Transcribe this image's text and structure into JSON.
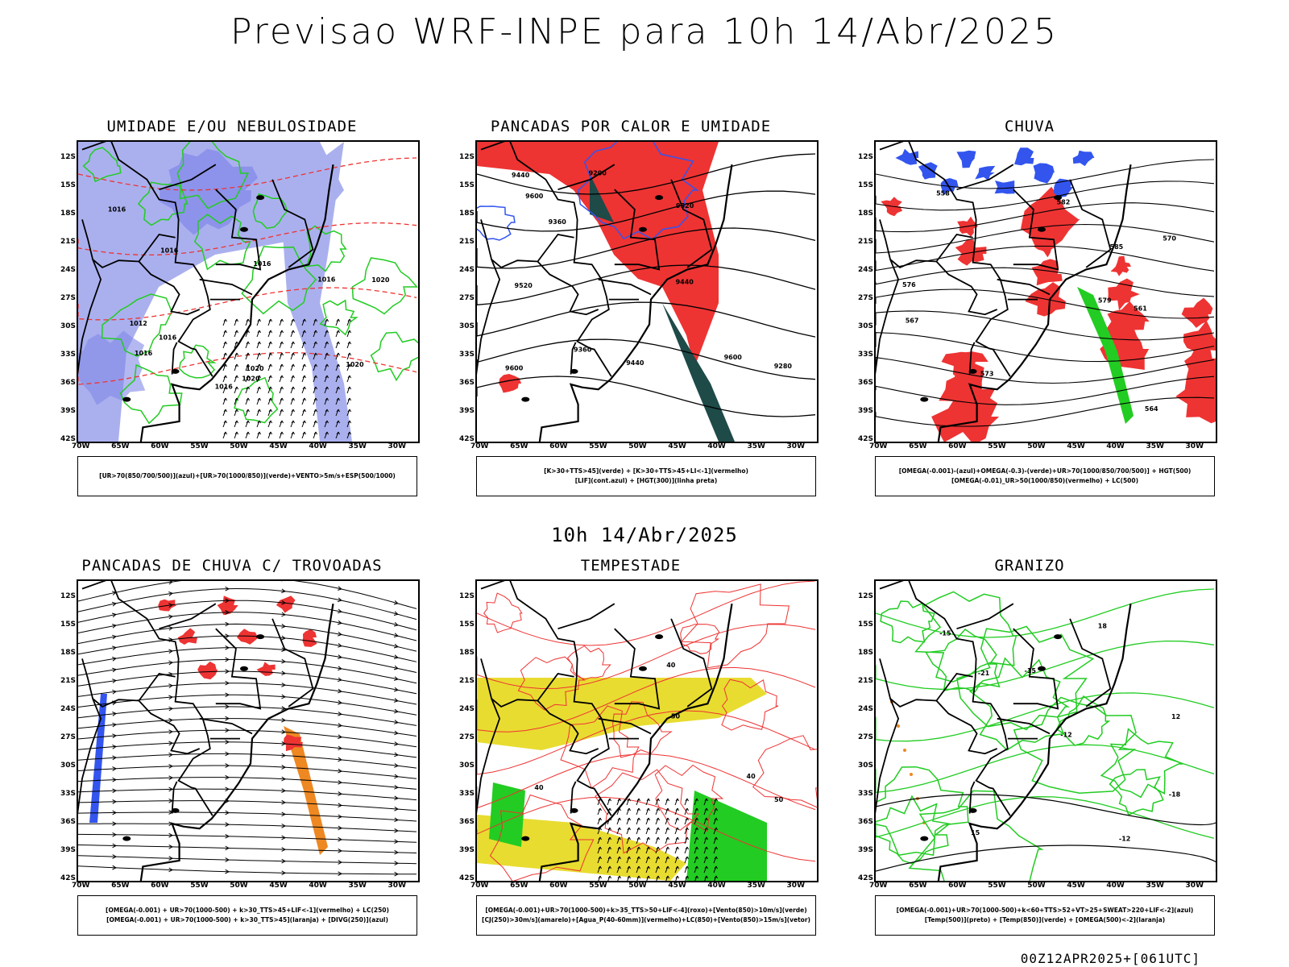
{
  "title": "Previsao WRF-INPE  para 10h 14/Abr/2025",
  "mid_title": "10h 14/Abr/2025",
  "footer": "00Z12APR2025+[061UTC]",
  "lat_labels": [
    "12S",
    "15S",
    "18S",
    "21S",
    "24S",
    "27S",
    "30S",
    "33S",
    "36S",
    "39S",
    "42S"
  ],
  "lon_labels": [
    "70W",
    "65W",
    "60W",
    "55W",
    "50W",
    "45W",
    "40W",
    "35W",
    "30W"
  ],
  "colors": {
    "blue": "#3355ee",
    "green": "#22cc22",
    "red": "#ee3333",
    "orange": "#ee8822",
    "yellow": "#e8dc30",
    "darkgreen": "#1e4a48",
    "lavender": "#aab0ee"
  },
  "panels": [
    {
      "id": "umidade",
      "title": "UMIDADE E/OU NEBULOSIDADE",
      "legend": [
        "[UR>70(850/700/500)](azul)+[UR>70(1000/850)](verde)+VENTO>5m/s+ESP(500/1000)"
      ],
      "contour_labels": [
        "1016",
        "1020",
        "1016",
        "1016",
        "1020",
        "1016",
        "1020",
        "1012",
        "1016",
        "1016",
        "1016",
        "1020"
      ]
    },
    {
      "id": "pancadas-calor",
      "title": "PANCADAS POR CALOR E UMIDADE",
      "legend": [
        "[K>30+TTS>45](verde)  +  [K>30+TTS>45+LI<-1](vermelho)",
        "[LIF](cont.azul)  +  [HGT(300)](linha preta)"
      ],
      "contour_labels": [
        "9600",
        "9520",
        "9440",
        "9600",
        "9520",
        "9440",
        "9360",
        "9280",
        "9200",
        "9360",
        "9440",
        "9600"
      ]
    },
    {
      "id": "chuva",
      "title": "CHUVA",
      "legend": [
        "[OMEGA(-0.001)-(azul)+OMEGA(-0.3)-(verde)+UR>70(1000/850/700/500)]  +  HGT(500)",
        "[OMEGA(-0.01)_UR>50(1000/850)(vermelho)  +  LC(500)"
      ],
      "contour_labels": [
        "585",
        "582",
        "579",
        "576",
        "573",
        "570",
        "567",
        "564",
        "561",
        "558"
      ]
    },
    {
      "id": "pancadas-trovoadas",
      "title": "PANCADAS DE CHUVA C/ TROVOADAS",
      "legend": [
        "[OMEGA(-0.001)  +  UR>70(1000-500)  +  k>30_TTS>45+LIF<-1](vermelho)  +  LC(250)",
        "[OMEGA(-0.001)  +  UR>70(1000-500)  +  k>30_TTS>45](laranja)  +  [DIVG(250)](azul)"
      ],
      "contour_labels": []
    },
    {
      "id": "tempestade",
      "title": "TEMPESTADE",
      "legend": [
        "[OMEGA(-0.001)+UR>70(1000-500)+k>35_TTS>50+LIF<-4](roxo)+[Vento(850)>10m/s](verde)",
        "[CJ(250)>30m/s](amarelo)+[Agua_P(40-60mm)](vermelho)+LC(850)+[Vento(850)>15m/s](vetor)"
      ],
      "contour_labels": [
        "40",
        "50",
        "40",
        "50",
        "40"
      ]
    },
    {
      "id": "granizo",
      "title": "GRANIZO",
      "legend": [
        "[OMEGA(-0.001)+UR>70(1000-500)+k<60+TTS>52+VT>25+SWEAT>220+LIF<-2](azul)",
        "[Temp(500)](preto)  +  [Temp(850)](verde)  +  [OMEGA(500)<-2](laranja)"
      ],
      "contour_labels": [
        "-12",
        "-15",
        "-18",
        "12",
        "15",
        "18",
        "-21",
        "-12",
        "-15"
      ]
    }
  ]
}
